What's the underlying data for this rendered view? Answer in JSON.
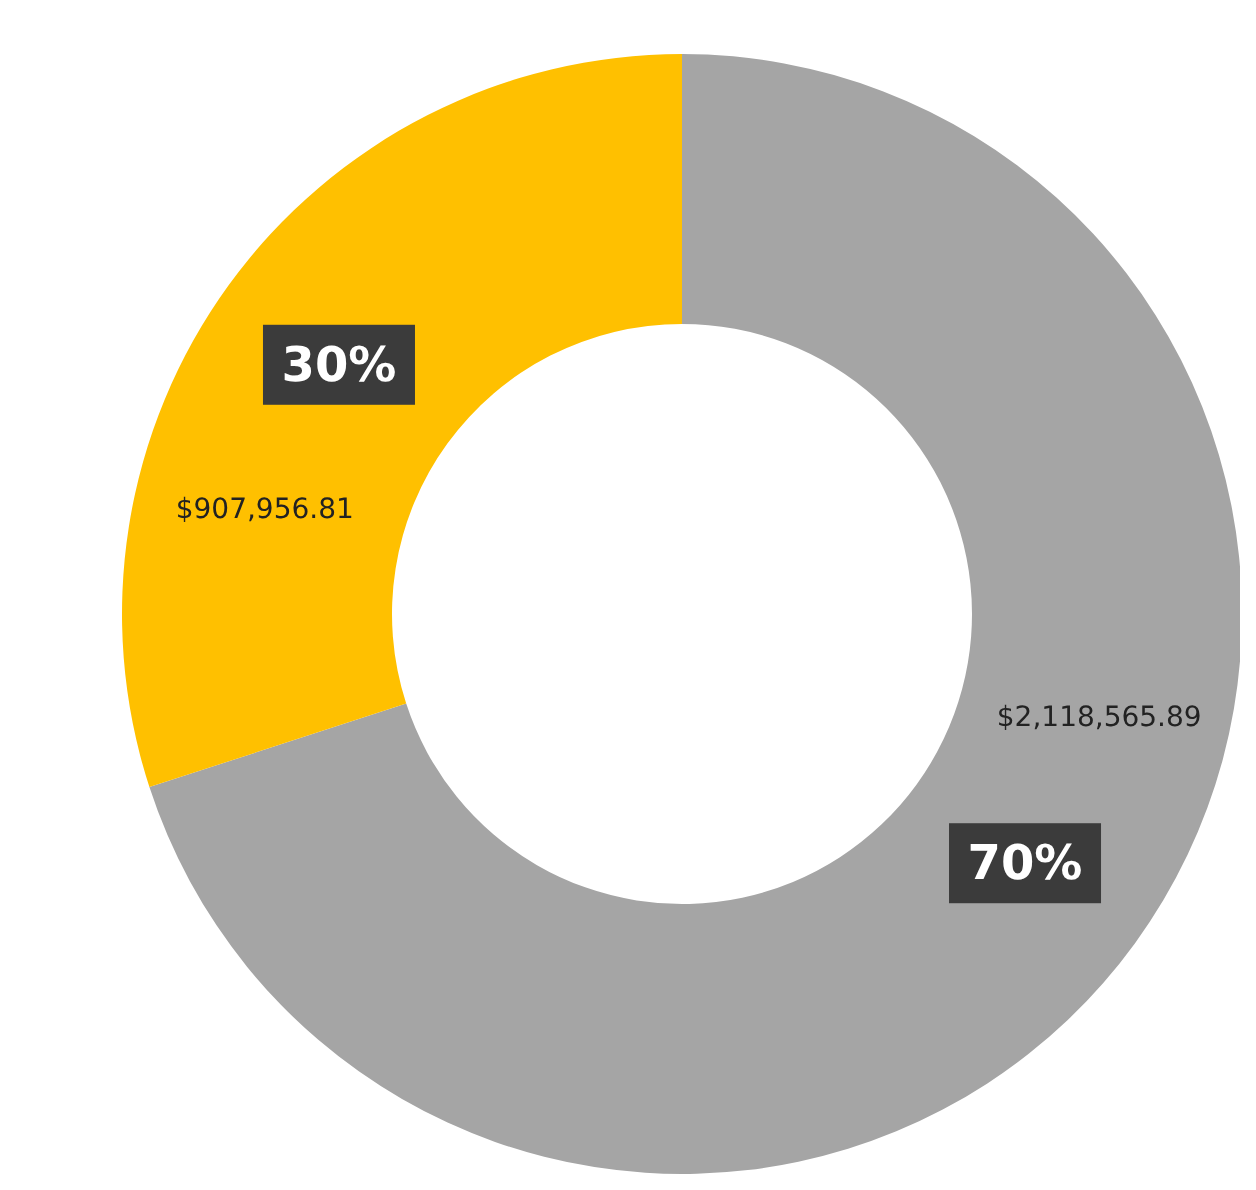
{
  "chart_data": {
    "type": "donut",
    "categories": [
      null,
      null
    ],
    "values": [
      2118565.89,
      907956.81
    ],
    "colors": [
      "#a5a5a5",
      "#ffc000"
    ],
    "value_labels": [
      "$2,118,565.89",
      "$907,956.81"
    ],
    "annotations": [
      "70%",
      "30%"
    ]
  }
}
